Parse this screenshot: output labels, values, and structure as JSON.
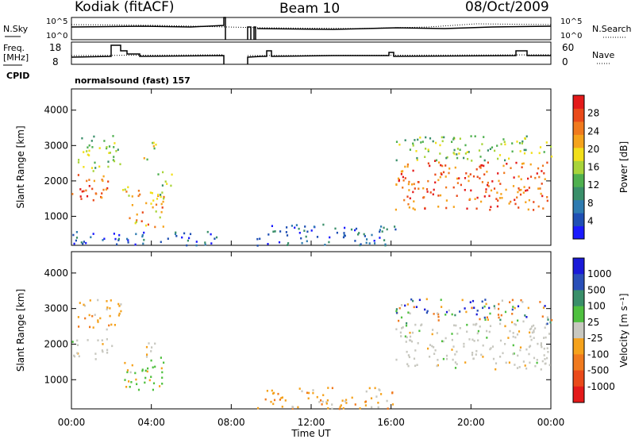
{
  "header": {
    "station": "Kodiak (fitACF)",
    "beam": "Beam 10",
    "date": "08/Oct/2009"
  },
  "top_panels": {
    "nsky_label": "N.Sky",
    "nsearch_label": "N.Search",
    "freq_label_1": "Freq.",
    "freq_label_2": "[MHz]",
    "nave_label": "Nave",
    "cpid_label": "CPID",
    "cpid_value": "normalsound (fast) 157",
    "noise_tick_top": "10^5",
    "noise_tick_bottom": "10^0",
    "freq_tick_top": "18",
    "freq_tick_bottom": "8",
    "nave_tick_top": "60",
    "nave_tick_bottom": "0"
  },
  "chart_data": [
    {
      "type": "heatmap",
      "panel": "power",
      "ylabel": "Slant Range [km]",
      "ylim": [
        180,
        4600
      ],
      "yticks": [
        "1000",
        "2000",
        "3000",
        "4000"
      ],
      "colorbar": {
        "label": "Power [dB]",
        "ticks": [
          "4",
          "8",
          "12",
          "16",
          "20",
          "24",
          "28"
        ],
        "range": [
          0,
          30
        ],
        "colors": [
          "#1a1aff",
          "#1f4fb4",
          "#2e7bb0",
          "#3a8f6a",
          "#4fb04f",
          "#a8d43a",
          "#f2df1a",
          "#f5a31c",
          "#f07a1e",
          "#ea4a1a",
          "#e41a1a"
        ]
      },
      "echo_regions": [
        {
          "t0": 0.0,
          "t1": 1.8,
          "r0": 1400,
          "r1": 2300,
          "level": 0.85
        },
        {
          "t0": 0.3,
          "t1": 2.5,
          "r0": 2300,
          "r1": 3300,
          "level": 0.45
        },
        {
          "t0": 2.3,
          "t1": 3.0,
          "r0": 1600,
          "r1": 2000,
          "level": 0.6
        },
        {
          "t0": 2.8,
          "t1": 4.6,
          "r0": 700,
          "r1": 1800,
          "level": 0.7
        },
        {
          "t0": 3.6,
          "t1": 4.2,
          "r0": 2600,
          "r1": 3300,
          "level": 0.5
        },
        {
          "t0": 4.2,
          "t1": 5.0,
          "r0": 1500,
          "r1": 2400,
          "level": 0.45
        },
        {
          "t0": 0.0,
          "t1": 7.4,
          "r0": 200,
          "r1": 600,
          "level": 0.15
        },
        {
          "t0": 9.2,
          "t1": 16.2,
          "r0": 200,
          "r1": 800,
          "level": 0.15
        },
        {
          "t0": 16.2,
          "t1": 24.0,
          "r0": 1200,
          "r1": 2600,
          "level": 0.85
        },
        {
          "t0": 16.2,
          "t1": 24.0,
          "r0": 2600,
          "r1": 3300,
          "level": 0.45
        }
      ],
      "gaps": [
        [
          7.6,
          8.6
        ],
        [
          9.0,
          9.2
        ]
      ]
    },
    {
      "type": "heatmap",
      "panel": "velocity",
      "ylabel": "Slant Range [km]",
      "xlabel": "Time UT",
      "xlim": [
        "00:00",
        "24:00"
      ],
      "xticks": [
        "00:00",
        "04:00",
        "08:00",
        "12:00",
        "16:00",
        "20:00",
        "00:00"
      ],
      "ylim": [
        180,
        4600
      ],
      "yticks": [
        "1000",
        "2000",
        "3000",
        "4000"
      ],
      "colorbar": {
        "label": "Velocity [m s⁻¹]",
        "ticks": [
          "1000",
          "500",
          "100",
          "25",
          "-25",
          "-100",
          "-500",
          "-1000"
        ],
        "colors": [
          "#1a1ad8",
          "#2a4fb8",
          "#3a8f6a",
          "#4fc03f",
          "#c8c8c0",
          "#f5a21c",
          "#f07a1e",
          "#ea4a1a",
          "#e41a1a"
        ]
      },
      "echo_regions": [
        {
          "t0": 0.0,
          "t1": 2.0,
          "r0": 1600,
          "r1": 2200,
          "level": "ground"
        },
        {
          "t0": 0.3,
          "t1": 2.5,
          "r0": 2400,
          "r1": 3300,
          "level": "neg"
        },
        {
          "t0": 2.6,
          "t1": 4.6,
          "r0": 700,
          "r1": 1800,
          "level": "pos"
        },
        {
          "t0": 3.5,
          "t1": 4.5,
          "r0": 1800,
          "r1": 2100,
          "level": "ground"
        },
        {
          "t0": 9.2,
          "t1": 16.2,
          "r0": 200,
          "r1": 800,
          "level": "neg"
        },
        {
          "t0": 16.2,
          "t1": 24.0,
          "r0": 1300,
          "r1": 2600,
          "level": "ground"
        },
        {
          "t0": 16.2,
          "t1": 24.0,
          "r0": 2600,
          "r1": 3300,
          "level": "mixed"
        }
      ],
      "gaps": [
        [
          7.6,
          8.6
        ],
        [
          9.0,
          9.2
        ]
      ]
    }
  ]
}
